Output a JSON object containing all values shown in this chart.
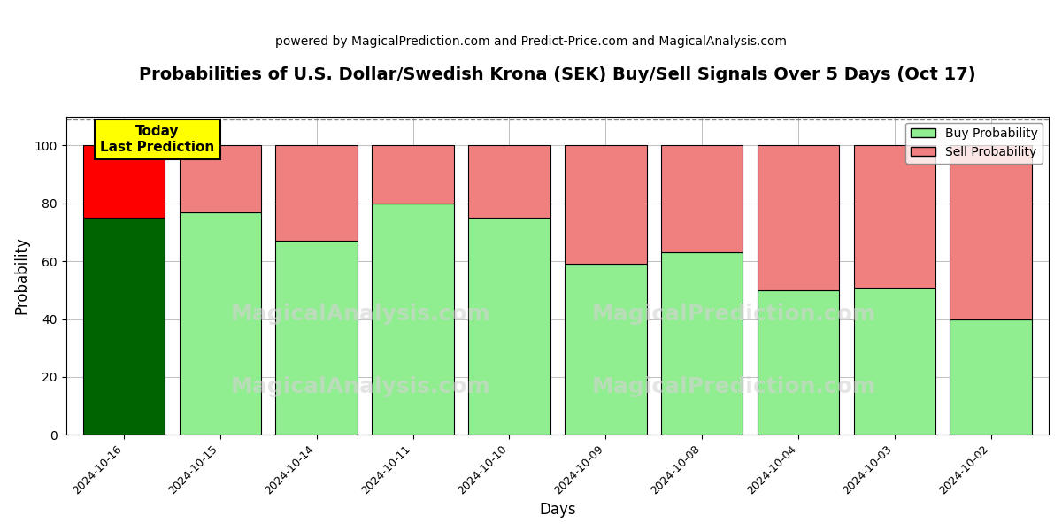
{
  "title": "Probabilities of U.S. Dollar/Swedish Krona (SEK) Buy/Sell Signals Over 5 Days (Oct 17)",
  "subtitle": "powered by MagicalPrediction.com and Predict-Price.com and MagicalAnalysis.com",
  "xlabel": "Days",
  "ylabel": "Probability",
  "dates": [
    "2024-10-16",
    "2024-10-15",
    "2024-10-14",
    "2024-10-11",
    "2024-10-10",
    "2024-10-09",
    "2024-10-08",
    "2024-10-04",
    "2024-10-03",
    "2024-10-02"
  ],
  "buy_values": [
    75,
    77,
    67,
    80,
    75,
    59,
    63,
    50,
    51,
    40
  ],
  "sell_values": [
    25,
    23,
    33,
    20,
    25,
    41,
    37,
    50,
    49,
    60
  ],
  "today_buy_color": "#006400",
  "today_sell_color": "#ff0000",
  "buy_color": "#90EE90",
  "sell_color": "#F08080",
  "today_label": "Today\nLast Prediction",
  "today_label_bg": "#ffff00",
  "legend_buy_label": "Buy Probability",
  "legend_sell_label": "Sell Probability",
  "ylim": [
    0,
    110
  ],
  "dashed_line_y": 109,
  "watermark1": "MagicalAnalysis.com",
  "watermark2": "MagicalPrediction.com",
  "bar_width": 0.85,
  "figsize": [
    12,
    6
  ],
  "dpi": 100,
  "title_fontsize": 14,
  "subtitle_fontsize": 10,
  "ylabel_fontsize": 12,
  "xlabel_fontsize": 12,
  "tick_fontsize": 9
}
